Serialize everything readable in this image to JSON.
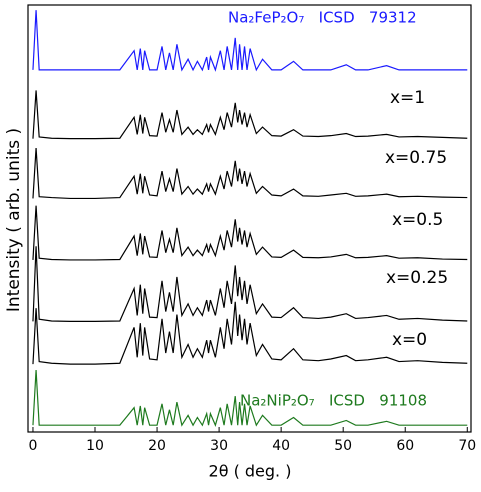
{
  "chart_data": {
    "type": "line",
    "xlabel": "2θ ( deg. )",
    "ylabel": "Intensity ( arb. units )",
    "xlim": [
      -0.8,
      70.6
    ],
    "ylim": [
      0,
      100
    ],
    "xticks": [
      0,
      10,
      20,
      30,
      40,
      50,
      60,
      70
    ],
    "x": [
      0,
      0.5,
      1,
      3,
      6,
      10,
      14,
      16.3,
      16.8,
      17.3,
      17.7,
      18,
      18.8,
      20,
      20.8,
      21.4,
      22,
      22.6,
      23.2,
      24,
      25,
      25.8,
      26.5,
      27.3,
      28,
      28.3,
      28.6,
      29.4,
      30.2,
      30.8,
      31.3,
      32,
      32.6,
      33,
      33.3,
      33.7,
      34.1,
      34.5,
      35,
      36,
      37,
      38.5,
      40,
      42,
      43.5,
      46,
      48,
      50.5,
      52,
      54,
      57,
      59,
      62,
      66,
      70
    ],
    "series": [
      {
        "name": "Na₂FeP₂O₇   ICSD   79312",
        "color": "#1a1aff",
        "values": [
          84.8,
          98.8,
          84.8,
          84.8,
          84.8,
          84.8,
          84.8,
          89.3,
          84.8,
          89.8,
          84.8,
          89.3,
          84.8,
          84.8,
          90.3,
          84.8,
          88.8,
          84.8,
          90.8,
          84.8,
          87.3,
          84.8,
          86.8,
          84.8,
          87.8,
          84.8,
          87.8,
          84.8,
          89.3,
          84.8,
          90.3,
          84.8,
          92.3,
          84.8,
          90.8,
          84.8,
          90.3,
          84.8,
          89.8,
          84.8,
          87.3,
          84.8,
          84.8,
          86.8,
          84.8,
          84.8,
          84.8,
          86.0,
          84.8,
          84.8,
          85.8,
          84.8,
          84.8,
          84.8,
          84.8
        ]
      },
      {
        "name": "x=1",
        "color": "#000000",
        "values": [
          68.7,
          80.0,
          69.1,
          68.8,
          68.7,
          68.7,
          68.8,
          73.7,
          69.7,
          74.3,
          69.9,
          73.7,
          69.4,
          69.3,
          74.8,
          70.2,
          73.1,
          70.2,
          75.4,
          69.7,
          71.4,
          69.7,
          70.8,
          69.7,
          72.0,
          70.2,
          72.0,
          69.7,
          73.7,
          70.8,
          74.8,
          71.4,
          77.1,
          72.5,
          75.4,
          72.0,
          74.8,
          71.4,
          74.3,
          69.9,
          71.4,
          69.4,
          69.3,
          70.8,
          69.3,
          69.2,
          69.4,
          69.9,
          69.2,
          69.3,
          69.7,
          69.1,
          69.2,
          69.0,
          68.8
        ]
      },
      {
        "name": "x=0.75",
        "color": "#000000",
        "values": [
          54.7,
          66.5,
          55.1,
          54.9,
          54.7,
          54.7,
          54.9,
          59.9,
          55.7,
          60.5,
          55.9,
          59.9,
          55.5,
          55.3,
          61.1,
          56.3,
          59.3,
          56.3,
          61.7,
          55.7,
          57.5,
          55.7,
          56.9,
          55.7,
          58.1,
          56.3,
          58.1,
          55.7,
          59.9,
          56.9,
          61.1,
          57.5,
          63.5,
          58.7,
          61.7,
          58.1,
          61.1,
          57.5,
          60.5,
          55.9,
          57.5,
          55.5,
          55.3,
          56.9,
          55.3,
          55.2,
          55.5,
          55.9,
          55.2,
          55.3,
          55.7,
          55.1,
          55.2,
          55.0,
          54.9
        ]
      },
      {
        "name": "x=0.5",
        "color": "#000000",
        "values": [
          40.3,
          53.0,
          40.7,
          40.4,
          40.3,
          40.3,
          40.4,
          45.9,
          41.3,
          46.5,
          41.6,
          45.9,
          41.0,
          40.9,
          47.2,
          42.0,
          45.2,
          42.0,
          47.8,
          41.3,
          43.3,
          41.3,
          42.6,
          41.3,
          43.9,
          42.0,
          43.9,
          41.3,
          45.9,
          42.6,
          47.2,
          43.3,
          49.8,
          44.6,
          47.8,
          43.9,
          47.2,
          43.3,
          46.5,
          41.6,
          43.3,
          41.0,
          40.9,
          42.6,
          40.9,
          40.8,
          41.0,
          41.6,
          40.8,
          40.9,
          41.3,
          40.7,
          40.8,
          40.5,
          40.4
        ]
      },
      {
        "name": "x=0.25",
        "color": "#000000",
        "values": [
          25.9,
          43.5,
          26.4,
          26.0,
          25.9,
          25.9,
          26.0,
          33.6,
          27.3,
          34.5,
          27.7,
          33.6,
          26.9,
          26.8,
          35.4,
          28.2,
          32.7,
          28.2,
          36.3,
          27.3,
          30.0,
          27.3,
          29.1,
          27.3,
          30.9,
          28.2,
          30.9,
          27.3,
          33.6,
          29.1,
          35.4,
          30.0,
          39.0,
          31.8,
          36.3,
          30.9,
          35.4,
          30.0,
          34.5,
          27.7,
          30.0,
          26.9,
          26.8,
          29.1,
          26.8,
          26.6,
          26.9,
          27.7,
          26.6,
          26.8,
          27.3,
          26.4,
          26.6,
          26.2,
          26.0
        ]
      },
      {
        "name": "x=0",
        "color": "#000000",
        "values": [
          15.9,
          29.0,
          16.5,
          16.1,
          15.9,
          15.9,
          16.1,
          24.5,
          17.5,
          25.5,
          17.9,
          24.5,
          17.1,
          16.9,
          26.5,
          18.5,
          23.5,
          18.5,
          27.5,
          17.5,
          20.5,
          17.5,
          19.5,
          17.5,
          21.5,
          18.5,
          21.5,
          17.5,
          24.5,
          19.5,
          26.5,
          20.5,
          30.5,
          22.5,
          27.5,
          21.5,
          26.5,
          20.5,
          25.5,
          17.9,
          20.5,
          17.1,
          16.9,
          19.5,
          16.9,
          16.7,
          17.1,
          17.9,
          16.7,
          16.9,
          17.5,
          16.5,
          16.7,
          16.3,
          16.1
        ]
      },
      {
        "name": "Na₂NiP₂O₇   ICSD   91108",
        "color": "#1e7a1e",
        "values": [
          1.6,
          14.5,
          1.6,
          1.6,
          1.6,
          1.6,
          1.6,
          5.7,
          1.6,
          6.1,
          1.6,
          5.7,
          1.6,
          1.6,
          6.6,
          1.6,
          5.2,
          1.6,
          7.0,
          1.6,
          3.9,
          1.6,
          3.4,
          1.6,
          4.3,
          1.6,
          4.3,
          1.6,
          5.7,
          1.6,
          6.6,
          1.6,
          8.4,
          1.6,
          7.0,
          1.6,
          6.6,
          1.6,
          6.1,
          1.6,
          3.9,
          1.6,
          1.6,
          3.4,
          1.6,
          1.6,
          1.6,
          2.7,
          1.6,
          1.6,
          2.5,
          1.6,
          1.6,
          1.6,
          1.6
        ]
      }
    ]
  }
}
